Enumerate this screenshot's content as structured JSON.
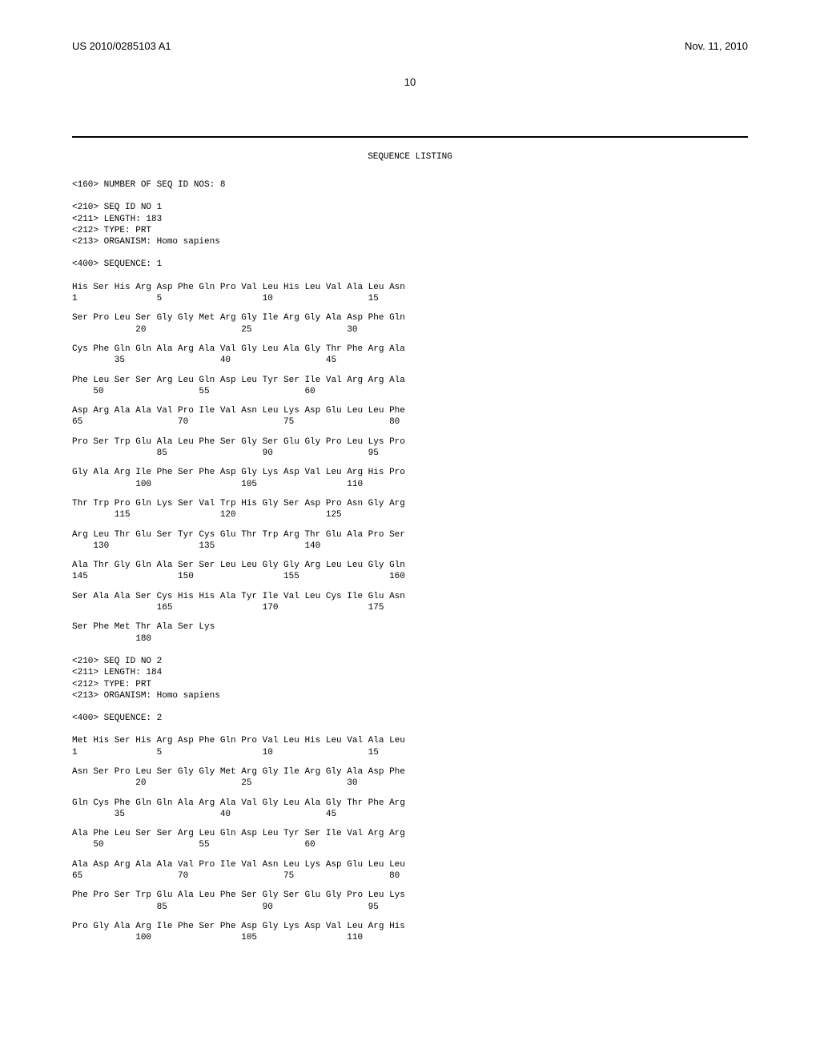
{
  "header": {
    "pub_number": "US 2010/0285103 A1",
    "pub_date": "Nov. 11, 2010"
  },
  "page_number": "10",
  "listing_title": "SEQUENCE LISTING",
  "blocks": [
    {
      "type": "meta",
      "lines": [
        "<160> NUMBER OF SEQ ID NOS: 8"
      ]
    },
    {
      "type": "meta",
      "lines": [
        "<210> SEQ ID NO 1",
        "<211> LENGTH: 183",
        "<212> TYPE: PRT",
        "<213> ORGANISM: Homo sapiens"
      ]
    },
    {
      "type": "meta",
      "lines": [
        "<400> SEQUENCE: 1"
      ]
    },
    {
      "type": "sequence",
      "rows": [
        {
          "aa": "His Ser His Arg Asp Phe Gln Pro Val Leu His Leu Val Ala Leu Asn",
          "nums": "1               5                   10                  15"
        },
        {
          "aa": "Ser Pro Leu Ser Gly Gly Met Arg Gly Ile Arg Gly Ala Asp Phe Gln",
          "nums": "            20                  25                  30"
        },
        {
          "aa": "Cys Phe Gln Gln Ala Arg Ala Val Gly Leu Ala Gly Thr Phe Arg Ala",
          "nums": "        35                  40                  45"
        },
        {
          "aa": "Phe Leu Ser Ser Arg Leu Gln Asp Leu Tyr Ser Ile Val Arg Arg Ala",
          "nums": "    50                  55                  60"
        },
        {
          "aa": "Asp Arg Ala Ala Val Pro Ile Val Asn Leu Lys Asp Glu Leu Leu Phe",
          "nums": "65                  70                  75                  80"
        },
        {
          "aa": "Pro Ser Trp Glu Ala Leu Phe Ser Gly Ser Glu Gly Pro Leu Lys Pro",
          "nums": "                85                  90                  95"
        },
        {
          "aa": "Gly Ala Arg Ile Phe Ser Phe Asp Gly Lys Asp Val Leu Arg His Pro",
          "nums": "            100                 105                 110"
        },
        {
          "aa": "Thr Trp Pro Gln Lys Ser Val Trp His Gly Ser Asp Pro Asn Gly Arg",
          "nums": "        115                 120                 125"
        },
        {
          "aa": "Arg Leu Thr Glu Ser Tyr Cys Glu Thr Trp Arg Thr Glu Ala Pro Ser",
          "nums": "    130                 135                 140"
        },
        {
          "aa": "Ala Thr Gly Gln Ala Ser Ser Leu Leu Gly Gly Arg Leu Leu Gly Gln",
          "nums": "145                 150                 155                 160"
        },
        {
          "aa": "Ser Ala Ala Ser Cys His His Ala Tyr Ile Val Leu Cys Ile Glu Asn",
          "nums": "                165                 170                 175"
        },
        {
          "aa": "Ser Phe Met Thr Ala Ser Lys",
          "nums": "            180"
        }
      ]
    },
    {
      "type": "meta",
      "lines": [
        "<210> SEQ ID NO 2",
        "<211> LENGTH: 184",
        "<212> TYPE: PRT",
        "<213> ORGANISM: Homo sapiens"
      ]
    },
    {
      "type": "meta",
      "lines": [
        "<400> SEQUENCE: 2"
      ]
    },
    {
      "type": "sequence",
      "rows": [
        {
          "aa": "Met His Ser His Arg Asp Phe Gln Pro Val Leu His Leu Val Ala Leu",
          "nums": "1               5                   10                  15"
        },
        {
          "aa": "Asn Ser Pro Leu Ser Gly Gly Met Arg Gly Ile Arg Gly Ala Asp Phe",
          "nums": "            20                  25                  30"
        },
        {
          "aa": "Gln Cys Phe Gln Gln Ala Arg Ala Val Gly Leu Ala Gly Thr Phe Arg",
          "nums": "        35                  40                  45"
        },
        {
          "aa": "Ala Phe Leu Ser Ser Arg Leu Gln Asp Leu Tyr Ser Ile Val Arg Arg",
          "nums": "    50                  55                  60"
        },
        {
          "aa": "Ala Asp Arg Ala Ala Val Pro Ile Val Asn Leu Lys Asp Glu Leu Leu",
          "nums": "65                  70                  75                  80"
        },
        {
          "aa": "Phe Pro Ser Trp Glu Ala Leu Phe Ser Gly Ser Glu Gly Pro Leu Lys",
          "nums": "                85                  90                  95"
        },
        {
          "aa": "Pro Gly Ala Arg Ile Phe Ser Phe Asp Gly Lys Asp Val Leu Arg His",
          "nums": "            100                 105                 110"
        }
      ]
    }
  ]
}
